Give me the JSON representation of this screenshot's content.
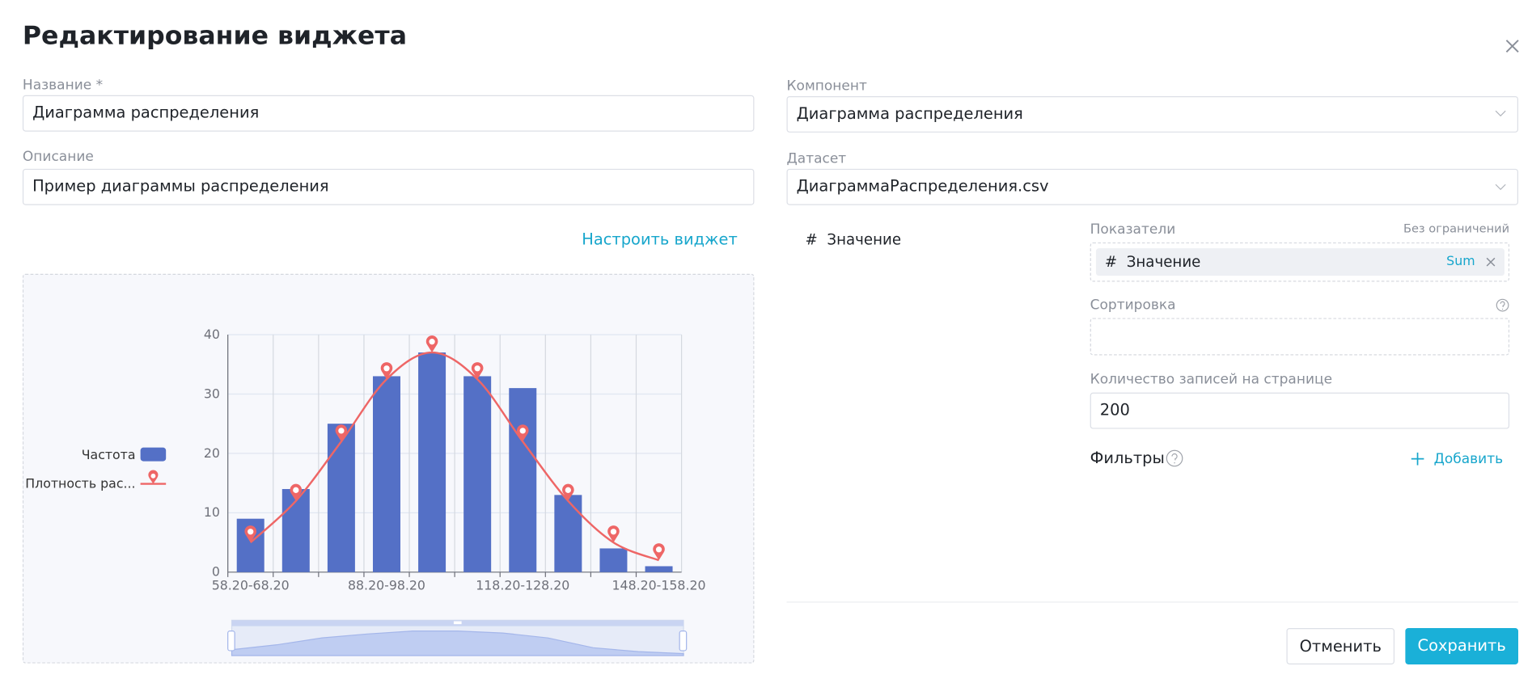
{
  "dialog": {
    "title": "Редактирование виджета"
  },
  "form": {
    "name_label": "Название *",
    "name_value": "Диаграмма распределения",
    "description_label": "Описание",
    "description_value": "Пример диаграммы распределения",
    "configure_link": "Настроить виджет",
    "component_label": "Компонент",
    "component_value": "Диаграмма распределения",
    "dataset_label": "Датасет",
    "dataset_value": "ДиаграммаРаспределения.csv",
    "field": {
      "icon": "#",
      "name": "Значение"
    },
    "metrics_label": "Показатели",
    "metrics_limit": "Без ограничений",
    "metric": {
      "icon": "#",
      "name": "Значение",
      "aggregation": "Sum"
    },
    "sort_label": "Сортировка",
    "page_size_label": "Количество записей на странице",
    "page_size_value": 200,
    "filters_label": "Фильтры",
    "add_filter": "Добавить"
  },
  "buttons": {
    "cancel": "Отменить",
    "save": "Сохранить"
  },
  "chart_data": {
    "type": "bar",
    "categories": [
      "58.20-68.20",
      null,
      null,
      "88.20-98.20",
      null,
      null,
      "118.20-128.20",
      null,
      null,
      "148.20-158.20"
    ],
    "series": [
      {
        "name": "Частота",
        "type": "bar",
        "color": "#5470c6",
        "values": [
          9,
          14,
          25,
          33,
          37,
          33,
          31,
          13,
          4,
          1
        ]
      },
      {
        "name": "Плотность рас...",
        "type": "line",
        "color": "#ee6666",
        "values": [
          5,
          12,
          22,
          32.5,
          37,
          32.5,
          22,
          12,
          5,
          2
        ]
      }
    ],
    "ylim": [
      0,
      40
    ],
    "yticks": [
      0,
      10,
      20,
      30,
      40
    ],
    "grid": true
  }
}
